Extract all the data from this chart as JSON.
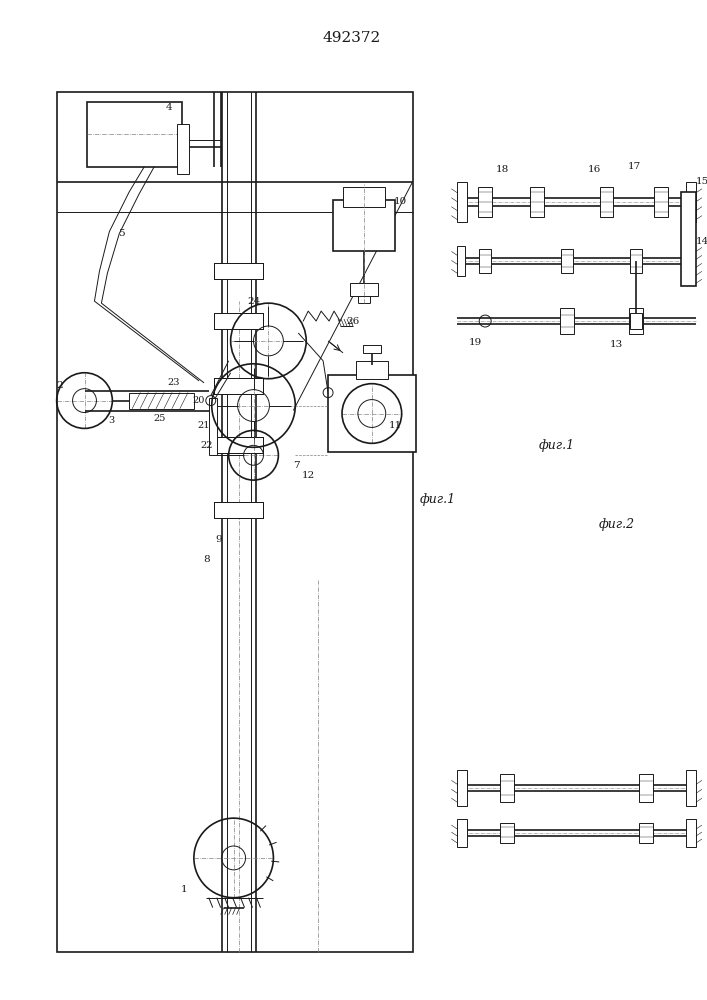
{
  "title": "492372",
  "fig1_label": "фиг.1",
  "fig2_label": "фиг.2",
  "lc": "#1a1a1a",
  "bg": "#ffffff",
  "lw": 0.7,
  "lw2": 1.2
}
